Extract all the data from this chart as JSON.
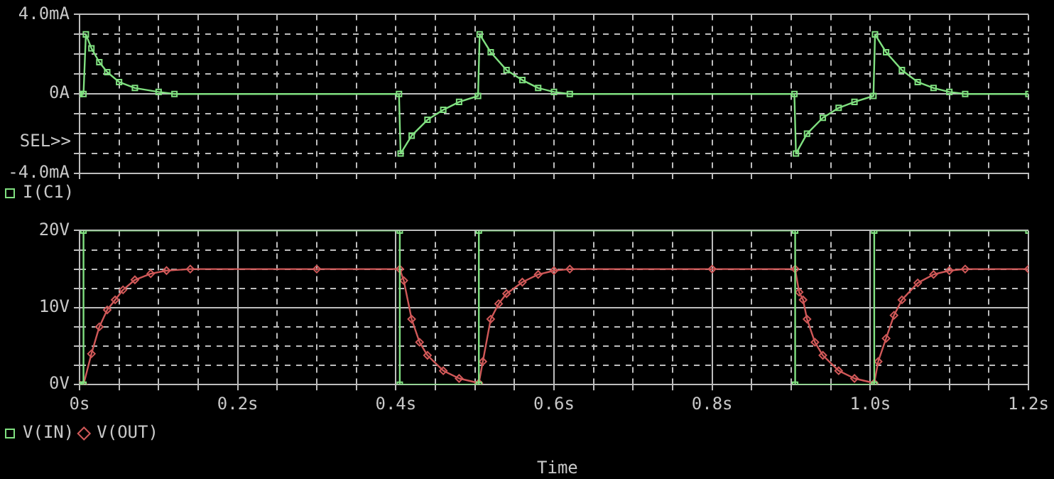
{
  "chart_data": [
    {
      "type": "line",
      "xlim": [
        0,
        1.2
      ],
      "xticks": [
        {
          "value": 0,
          "label": null
        },
        {
          "value": 0.05,
          "label": null
        },
        {
          "value": 0.1,
          "label": null
        },
        {
          "value": 0.15,
          "label": null
        },
        {
          "value": 0.2,
          "label": null
        },
        {
          "value": 0.25,
          "label": null
        },
        {
          "value": 0.3,
          "label": null
        },
        {
          "value": 0.35,
          "label": null
        },
        {
          "value": 0.4,
          "label": null
        },
        {
          "value": 0.45,
          "label": null
        },
        {
          "value": 0.5,
          "label": null
        },
        {
          "value": 0.55,
          "label": null
        },
        {
          "value": 0.6,
          "label": null
        },
        {
          "value": 0.65,
          "label": null
        },
        {
          "value": 0.7,
          "label": null
        },
        {
          "value": 0.75,
          "label": null
        },
        {
          "value": 0.8,
          "label": null
        },
        {
          "value": 0.85,
          "label": null
        },
        {
          "value": 0.9,
          "label": null
        },
        {
          "value": 0.95,
          "label": null
        },
        {
          "value": 1.0,
          "label": null
        },
        {
          "value": 1.05,
          "label": null
        },
        {
          "value": 1.1,
          "label": null
        },
        {
          "value": 1.15,
          "label": null
        },
        {
          "value": 1.2,
          "label": null
        }
      ],
      "ylim": [
        -4,
        4
      ],
      "yticks": [
        {
          "value": -4,
          "label": "-4.0mA"
        },
        {
          "value": -3,
          "label": null
        },
        {
          "value": -2,
          "label": null
        },
        {
          "value": -1,
          "label": null
        },
        {
          "value": 0,
          "label": "0A"
        },
        {
          "value": 1,
          "label": null
        },
        {
          "value": 2,
          "label": null
        },
        {
          "value": 3,
          "label": null
        },
        {
          "value": 4,
          "label": "4.0mA"
        }
      ],
      "tick_labels": "y",
      "grid": true,
      "legend": "bottom left",
      "annotations": [
        "SEL>>"
      ],
      "series": [
        {
          "name": "I(C1)",
          "color": "#80e080",
          "marker": "square",
          "x": [
            0,
            0.005,
            0.008,
            0.015,
            0.025,
            0.035,
            0.05,
            0.07,
            0.1,
            0.12,
            0.404,
            0.406,
            0.42,
            0.44,
            0.46,
            0.48,
            0.504,
            0.506,
            0.52,
            0.54,
            0.56,
            0.58,
            0.6,
            0.62,
            0.904,
            0.906,
            0.92,
            0.94,
            0.96,
            0.98,
            1.004,
            1.006,
            1.02,
            1.04,
            1.06,
            1.08,
            1.1,
            1.12,
            1.2
          ],
          "values": [
            0,
            0,
            3,
            2.3,
            1.6,
            1.1,
            0.6,
            0.3,
            0.1,
            0,
            0,
            -3,
            -2.1,
            -1.3,
            -0.8,
            -0.4,
            -0.1,
            3,
            2.1,
            1.2,
            0.7,
            0.3,
            0.1,
            0,
            0,
            -3,
            -2,
            -1.2,
            -0.7,
            -0.4,
            -0.1,
            3,
            2.1,
            1.2,
            0.6,
            0.3,
            0.1,
            0,
            0
          ]
        }
      ]
    },
    {
      "type": "line",
      "xlabel": "Time",
      "xlim": [
        0,
        1.2
      ],
      "xticks": [
        {
          "value": 0,
          "label": "0s"
        },
        {
          "value": 0.05,
          "label": null
        },
        {
          "value": 0.1,
          "label": null
        },
        {
          "value": 0.15,
          "label": null
        },
        {
          "value": 0.2,
          "label": "0.2s"
        },
        {
          "value": 0.25,
          "label": null
        },
        {
          "value": 0.3,
          "label": null
        },
        {
          "value": 0.35,
          "label": null
        },
        {
          "value": 0.4,
          "label": "0.4s"
        },
        {
          "value": 0.45,
          "label": null
        },
        {
          "value": 0.5,
          "label": null
        },
        {
          "value": 0.55,
          "label": null
        },
        {
          "value": 0.6,
          "label": "0.6s"
        },
        {
          "value": 0.65,
          "label": null
        },
        {
          "value": 0.7,
          "label": null
        },
        {
          "value": 0.75,
          "label": null
        },
        {
          "value": 0.8,
          "label": "0.8s"
        },
        {
          "value": 0.85,
          "label": null
        },
        {
          "value": 0.9,
          "label": null
        },
        {
          "value": 0.95,
          "label": null
        },
        {
          "value": 1.0,
          "label": "1.0s"
        },
        {
          "value": 1.05,
          "label": null
        },
        {
          "value": 1.1,
          "label": null
        },
        {
          "value": 1.15,
          "label": null
        },
        {
          "value": 1.2,
          "label": "1.2s"
        }
      ],
      "ylim": [
        0,
        20
      ],
      "yticks": [
        {
          "value": 0,
          "label": "0V"
        },
        {
          "value": 2.5,
          "label": null
        },
        {
          "value": 5,
          "label": null
        },
        {
          "value": 7.5,
          "label": null
        },
        {
          "value": 10,
          "label": "10V"
        },
        {
          "value": 12.5,
          "label": null
        },
        {
          "value": 15,
          "label": null
        },
        {
          "value": 17.5,
          "label": null
        },
        {
          "value": 20,
          "label": "20V"
        }
      ],
      "grid": true,
      "legend": "bottom left",
      "series": [
        {
          "name": "V(IN)",
          "color": "#80e080",
          "marker": "square",
          "x": [
            0,
            0.005,
            0.005,
            0.405,
            0.405,
            0.505,
            0.505,
            0.905,
            0.905,
            1.005,
            1.005,
            1.2
          ],
          "values": [
            0,
            0,
            20,
            20,
            0,
            0,
            20,
            20,
            0,
            0,
            20,
            20
          ]
        },
        {
          "name": "V(OUT)",
          "color": "#d05858",
          "marker": "diamond",
          "x": [
            0,
            0.005,
            0.015,
            0.025,
            0.035,
            0.045,
            0.055,
            0.07,
            0.09,
            0.11,
            0.14,
            0.3,
            0.405,
            0.41,
            0.42,
            0.43,
            0.44,
            0.46,
            0.48,
            0.505,
            0.51,
            0.52,
            0.53,
            0.54,
            0.56,
            0.58,
            0.6,
            0.62,
            0.8,
            0.905,
            0.91,
            0.915,
            0.92,
            0.93,
            0.94,
            0.96,
            0.98,
            1.005,
            1.01,
            1.02,
            1.03,
            1.04,
            1.06,
            1.08,
            1.1,
            1.12,
            1.2
          ],
          "values": [
            0,
            0,
            4,
            7.5,
            9.7,
            11,
            12.3,
            13.6,
            14.4,
            14.8,
            15,
            15,
            15,
            13.5,
            8.5,
            5.5,
            3.8,
            1.8,
            0.8,
            0.2,
            3,
            8.5,
            10.5,
            11.8,
            13.3,
            14.3,
            14.8,
            15,
            15,
            15,
            12,
            11,
            8.5,
            5.5,
            3.8,
            1.8,
            0.8,
            0.2,
            3,
            6,
            9,
            11,
            13.2,
            14.3,
            14.8,
            15,
            15
          ]
        }
      ]
    }
  ]
}
